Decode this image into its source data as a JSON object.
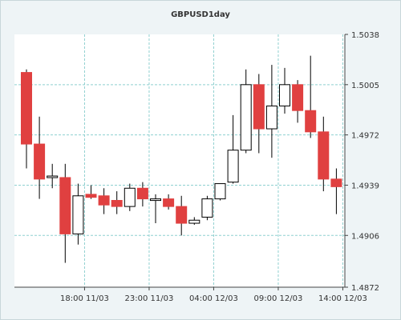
{
  "chart_data": {
    "type": "candlestick",
    "title": "GBPUSD1day",
    "xlabel": "",
    "ylabel": "",
    "ylim": [
      1.4872,
      1.5038
    ],
    "grid": true,
    "y_ticks": [
      "1.5038",
      "1.5005",
      "1.4972",
      "1.4939",
      "1.4906",
      "1.4872"
    ],
    "x_ticks": [
      {
        "index": 4.5,
        "label": "18:00 11/03"
      },
      {
        "index": 9.5,
        "label": "23:00 11/03"
      },
      {
        "index": 14.5,
        "label": "04:00 12/03"
      },
      {
        "index": 19.5,
        "label": "09:00 12/03"
      },
      {
        "index": 24.5,
        "label": "14:00 12/03"
      }
    ],
    "colors": {
      "bearish": "#e04040",
      "bullish": "#ffffff",
      "wick": "#000000",
      "grid": "#8fd0d0",
      "background": "#ffffff",
      "frame_background": "#eef4f6"
    },
    "candles": [
      {
        "open": 1.5013,
        "high": 1.5015,
        "low": 1.495,
        "close": 1.4966
      },
      {
        "open": 1.4966,
        "high": 1.4984,
        "low": 1.493,
        "close": 1.4943
      },
      {
        "open": 1.4944,
        "high": 1.4953,
        "low": 1.4937,
        "close": 1.4945
      },
      {
        "open": 1.4944,
        "high": 1.4953,
        "low": 1.4888,
        "close": 1.4907
      },
      {
        "open": 1.4907,
        "high": 1.494,
        "low": 1.49,
        "close": 1.4932
      },
      {
        "open": 1.4933,
        "high": 1.4939,
        "low": 1.493,
        "close": 1.4931
      },
      {
        "open": 1.4932,
        "high": 1.4937,
        "low": 1.492,
        "close": 1.4926
      },
      {
        "open": 1.4929,
        "high": 1.4935,
        "low": 1.492,
        "close": 1.4925
      },
      {
        "open": 1.4925,
        "high": 1.494,
        "low": 1.4922,
        "close": 1.4937
      },
      {
        "open": 1.4937,
        "high": 1.4941,
        "low": 1.4925,
        "close": 1.493
      },
      {
        "open": 1.493,
        "high": 1.4933,
        "low": 1.4914,
        "close": 1.493
      },
      {
        "open": 1.493,
        "high": 1.4933,
        "low": 1.4923,
        "close": 1.4925
      },
      {
        "open": 1.4925,
        "high": 1.4932,
        "low": 1.4906,
        "close": 1.4914
      },
      {
        "open": 1.4914,
        "high": 1.4918,
        "low": 1.4913,
        "close": 1.4916
      },
      {
        "open": 1.4918,
        "high": 1.4932,
        "low": 1.4916,
        "close": 1.493
      },
      {
        "open": 1.493,
        "high": 1.494,
        "low": 1.4929,
        "close": 1.494
      },
      {
        "open": 1.4941,
        "high": 1.4985,
        "low": 1.494,
        "close": 1.4962
      },
      {
        "open": 1.4962,
        "high": 1.5015,
        "low": 1.496,
        "close": 1.5005
      },
      {
        "open": 1.5005,
        "high": 1.5012,
        "low": 1.496,
        "close": 1.4976
      },
      {
        "open": 1.4976,
        "high": 1.5018,
        "low": 1.4957,
        "close": 1.4991
      },
      {
        "open": 1.4991,
        "high": 1.5016,
        "low": 1.4986,
        "close": 1.5005
      },
      {
        "open": 1.5005,
        "high": 1.5008,
        "low": 1.498,
        "close": 1.4988
      },
      {
        "open": 1.4988,
        "high": 1.5024,
        "low": 1.497,
        "close": 1.4974
      },
      {
        "open": 1.4974,
        "high": 1.4984,
        "low": 1.4935,
        "close": 1.4943
      },
      {
        "open": 1.4943,
        "high": 1.495,
        "low": 1.492,
        "close": 1.4938
      }
    ]
  }
}
